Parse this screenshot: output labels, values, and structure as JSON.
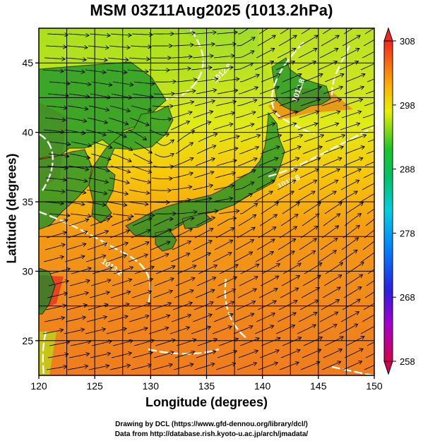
{
  "title": "MSM 03Z11Aug2025 (1013.2hPa)",
  "map": {
    "region": "Japan and surrounding seas",
    "field": "temperature (K) shaded with streamlines and white contour lines"
  },
  "x_axis": {
    "label": "Longitude (degrees)",
    "range": [
      120,
      150
    ],
    "ticks": [
      120,
      125,
      130,
      135,
      140,
      145,
      150
    ],
    "tick_labels": [
      "120",
      "125",
      "130",
      "135",
      "140",
      "145",
      "150"
    ]
  },
  "y_axis": {
    "label": "Latitude  (degrees)",
    "range": [
      22.5,
      47.5
    ],
    "ticks": [
      25,
      30,
      35,
      40,
      45
    ],
    "tick_labels": [
      "25",
      "30",
      "35",
      "40",
      "45"
    ]
  },
  "colorbar": {
    "min": 258,
    "max": 308,
    "ticks": [
      308,
      298,
      288,
      278,
      268,
      258
    ],
    "tick_labels": [
      "308",
      "298",
      "288",
      "278",
      "268",
      "258"
    ],
    "colors": [
      "#d6004c",
      "#b300c8",
      "#3b17d8",
      "#0033ff",
      "#0a72ff",
      "#00aaff",
      "#00d8e6",
      "#00d7a5",
      "#00c84b",
      "#5ed01f",
      "#b7e116",
      "#eef000",
      "#ffd400",
      "#ffad00",
      "#ff8000",
      "#f1451c"
    ]
  },
  "contours": [
    {
      "label": "1012.8"
    },
    {
      "label": "1012.8"
    },
    {
      "label": "1013.2"
    },
    {
      "label": "1012.8"
    }
  ],
  "credits": {
    "line1": "Drawing by DCL (https://www.gfd-dennou.org/library/dcl/)",
    "line2": "Data from http://database.rish.kyoto-u.ac.jp/arch/jmadata/"
  }
}
